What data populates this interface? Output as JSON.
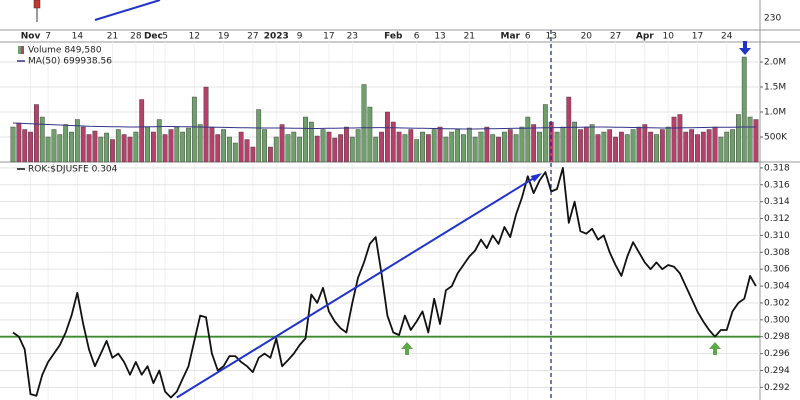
{
  "chart_data": [
    {
      "type": "candlestick",
      "yticks": [
        230
      ]
    },
    {
      "type": "volume",
      "title": "Volume 849,580",
      "ma_title": "MA(50) 699938.56",
      "categories": [
        null,
        null,
        null,
        "Nov",
        null,
        null,
        "7",
        null,
        null,
        null,
        null,
        "14",
        null,
        null,
        null,
        null,
        null,
        "21",
        null,
        null,
        null,
        "28",
        null,
        null,
        "Dec",
        null,
        "5",
        null,
        null,
        null,
        null,
        "12",
        null,
        null,
        null,
        null,
        "19",
        null,
        null,
        null,
        null,
        "27",
        null,
        null,
        null,
        "2023",
        null,
        null,
        null,
        "9",
        null,
        null,
        null,
        null,
        "17",
        null,
        null,
        null,
        "23",
        null,
        null,
        null,
        null,
        null,
        null,
        "Feb",
        null,
        null,
        null,
        "6",
        null,
        null,
        null,
        "13",
        null,
        null,
        null,
        null,
        "21",
        null,
        null,
        null,
        null,
        null,
        null,
        "Mar",
        null,
        null,
        "6",
        null,
        null,
        null,
        "13",
        null,
        null,
        null,
        null,
        null,
        "20",
        null,
        null,
        null,
        null,
        "27",
        null,
        null,
        null,
        null,
        "Apr",
        null,
        null,
        null,
        "10",
        null,
        null,
        null,
        null,
        "17",
        null,
        null,
        null,
        null,
        "24",
        null,
        null,
        null,
        null,
        null
      ],
      "values": [
        700000,
        780000,
        650000,
        600000,
        1150000,
        900000,
        500000,
        650000,
        550000,
        750000,
        600000,
        850000,
        700000,
        550000,
        620000,
        500000,
        580000,
        450000,
        650000,
        550000,
        500000,
        600000,
        1250000,
        700000,
        600000,
        850000,
        550000,
        650000,
        700000,
        600000,
        680000,
        1300000,
        750000,
        1500000,
        700000,
        550000,
        650000,
        500000,
        380000,
        600000,
        450000,
        300000,
        1050000,
        650000,
        300000,
        500000,
        750000,
        550000,
        600000,
        500000,
        900000,
        800000,
        520000,
        650000,
        600000,
        480000,
        550000,
        700000,
        500000,
        650000,
        1550000,
        1100000,
        500000,
        600000,
        1000000,
        800000,
        600000,
        550000,
        650000,
        450000,
        600000,
        550000,
        650000,
        700000,
        500000,
        600000,
        650000,
        550000,
        680000,
        500000,
        600000,
        700000,
        550000,
        500000,
        600000,
        650000,
        550000,
        700000,
        900000,
        750000,
        600000,
        1150000,
        800000,
        600000,
        700000,
        1300000,
        800000,
        650000,
        700000,
        750000,
        550000,
        600000,
        650000,
        500000,
        600000,
        550000,
        650000,
        700000,
        750000,
        600000,
        550000,
        650000,
        700000,
        900000,
        950000,
        600000,
        650000,
        550000,
        600000,
        650000,
        700000,
        500000,
        600000,
        650000,
        950000,
        2100000,
        900000,
        850000
      ],
      "ma": [
        780000,
        775000,
        770000,
        765000,
        760000,
        755000,
        750000,
        745000,
        740000,
        735000,
        730000,
        725000,
        720000,
        715000,
        712000,
        710000,
        708000,
        706000,
        704000,
        702000,
        700000,
        700000,
        702000,
        704000,
        706000,
        708000,
        710000,
        710000,
        708000,
        706000,
        704000,
        702000,
        700000,
        698000,
        696000,
        694000,
        692000,
        690000,
        688000,
        686000,
        684000,
        682000,
        680000,
        680000,
        680000,
        680000,
        680000,
        678000,
        676000,
        674000,
        672000,
        670000,
        670000,
        672000,
        674000,
        676000,
        678000,
        680000,
        680000,
        682000,
        684000,
        686000,
        688000,
        688000,
        686000,
        684000,
        682000,
        680000,
        678000,
        676000,
        674000,
        672000,
        670000,
        668000,
        666000,
        664000,
        662000,
        660000,
        660000,
        660000,
        662000,
        664000,
        666000,
        668000,
        670000,
        672000,
        674000,
        676000,
        678000,
        680000,
        682000,
        684000,
        686000,
        688000,
        690000,
        692000,
        694000,
        696000,
        698000,
        700000,
        700000,
        700000,
        698000,
        696000,
        694000,
        692000,
        690000,
        688000,
        686000,
        684000,
        682000,
        680000,
        680000,
        680000,
        682000,
        684000,
        686000,
        688000,
        690000,
        692000,
        694000,
        696000,
        696000,
        697000,
        698000,
        699000,
        699500,
        699938.56
      ],
      "up_color": "#6f9f6a",
      "down_color": "#b5416a",
      "ma_color": "#34348a",
      "ylim": [
        0,
        2400000
      ],
      "yticks": [
        {
          "value": 500000,
          "label": "500K"
        },
        {
          "value": 1000000,
          "label": "1.0M"
        },
        {
          "value": 1500000,
          "label": "1.5M"
        },
        {
          "value": 2000000,
          "label": "2.0M"
        }
      ]
    },
    {
      "type": "line",
      "title": "ROK:$DJUSFE 0.304",
      "color": "#111111",
      "values": [
        0.2985,
        0.298,
        0.2965,
        0.2912,
        0.291,
        0.2935,
        0.295,
        0.296,
        0.297,
        0.2985,
        0.3005,
        0.3032,
        0.2995,
        0.2965,
        0.2945,
        0.296,
        0.2975,
        0.2955,
        0.296,
        0.295,
        0.2935,
        0.295,
        0.2935,
        0.2945,
        0.2925,
        0.294,
        0.2915,
        0.2908,
        0.2915,
        0.293,
        0.2945,
        0.2975,
        0.3005,
        0.3003,
        0.296,
        0.294,
        0.2945,
        0.2957,
        0.2957,
        0.295,
        0.2945,
        0.2938,
        0.2955,
        0.296,
        0.2955,
        0.2978,
        0.2945,
        0.2952,
        0.296,
        0.297,
        0.2978,
        0.303,
        0.302,
        0.3038,
        0.301,
        0.2998,
        0.299,
        0.2985,
        0.302,
        0.305,
        0.3068,
        0.309,
        0.3098,
        0.3055,
        0.3005,
        0.2985,
        0.2982,
        0.3005,
        0.2988,
        0.2998,
        0.301,
        0.2985,
        0.3025,
        0.2995,
        0.3035,
        0.304,
        0.3055,
        0.3065,
        0.3075,
        0.3082,
        0.3095,
        0.3085,
        0.31,
        0.309,
        0.311,
        0.3098,
        0.3125,
        0.3145,
        0.317,
        0.315,
        0.3165,
        0.3175,
        0.3152,
        0.3155,
        0.318,
        0.3115,
        0.314,
        0.3105,
        0.3102,
        0.3108,
        0.3095,
        0.31,
        0.308,
        0.3065,
        0.3052,
        0.3075,
        0.3092,
        0.308,
        0.3068,
        0.306,
        0.3068,
        0.306,
        0.3065,
        0.3063,
        0.3055,
        0.304,
        0.3025,
        0.301,
        0.2998,
        0.2988,
        0.298,
        0.2988,
        0.2988,
        0.301,
        0.302,
        0.3025,
        0.3052,
        0.304
      ],
      "ylim": [
        0.2905,
        0.3187
      ],
      "yticks": [
        0.292,
        0.294,
        0.296,
        0.298,
        {
          "value": 0.3,
          "label": "0.300"
        },
        0.302,
        0.304,
        0.306,
        0.308,
        {
          "value": 0.31,
          "label": "0.310"
        },
        0.312,
        0.314,
        0.316,
        0.318
      ],
      "grid": true,
      "reference_lines": [
        {
          "value": 0.298,
          "color": "#3d8a2f"
        }
      ],
      "trendlines": [
        {
          "x": [
            28,
            90
          ],
          "y": [
            0.2908,
            0.3172
          ],
          "color": "#2233cc"
        }
      ]
    }
  ]
}
